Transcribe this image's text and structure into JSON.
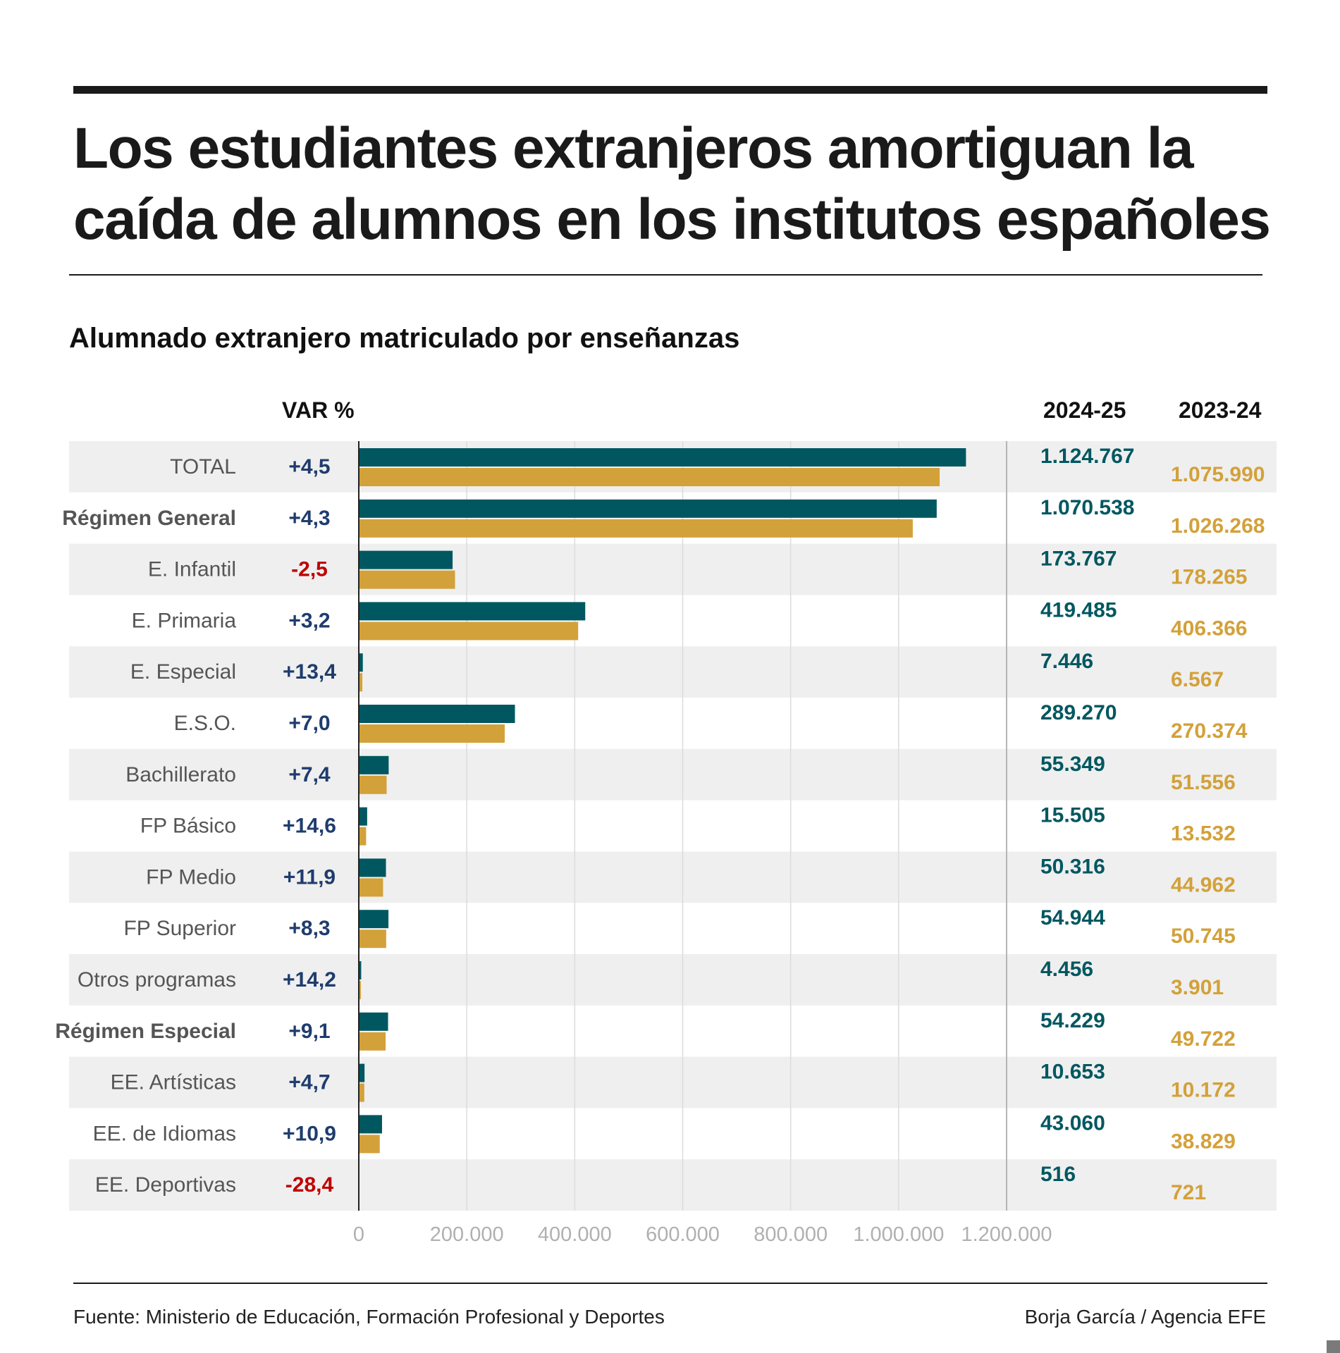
{
  "header": {
    "title_line1": "Los estudiantes extranjeros amortiguan la",
    "title_line2": "caída de alumnos en los institutos españoles",
    "subtitle": "Alumnado extranjero matriculado por enseñanzas"
  },
  "columns": {
    "var_label": "VAR %",
    "col_2024": "2024-25",
    "col_2023": "2023-24"
  },
  "footer": {
    "source": "Fuente: Ministerio de Educación, Formación Profesional y Deportes",
    "credit": "Borja García / Agencia EFE"
  },
  "colors": {
    "series_2024": "#005760",
    "series_2023": "#d3a13a",
    "positive_var": "#1f3c6e",
    "negative_var": "#c00000",
    "row_stripe": "#efefef",
    "label": "#555555"
  },
  "chart_data": {
    "type": "bar",
    "orientation": "horizontal",
    "grid": true,
    "xlim": [
      0,
      1200000
    ],
    "x_ticks": [
      "0",
      "200.000",
      "400.000",
      "600.000",
      "800.000",
      "1.000.000",
      "1.200.000"
    ],
    "categories": [
      "TOTAL",
      "Régimen General",
      "E. Infantil",
      "E. Primaria",
      "E. Especial",
      "E.S.O.",
      "Bachillerato",
      "FP Básico",
      "FP Medio",
      "FP Superior",
      "Otros programas",
      "Régimen Especial",
      "EE. Artísticas",
      "EE. de Idiomas",
      "EE. Deportivas"
    ],
    "bold_categories": [
      "Régimen General",
      "Régimen Especial"
    ],
    "variation": [
      "+4,5",
      "+4,3",
      "-2,5",
      "+3,2",
      "+13,4",
      "+7,0",
      "+7,4",
      "+14,6",
      "+11,9",
      "+8,3",
      "+14,2",
      "+9,1",
      "+4,7",
      "+10,9",
      "-28,4"
    ],
    "series": [
      {
        "name": "2024-25",
        "values": [
          1124767,
          1070538,
          173767,
          419485,
          7446,
          289270,
          55349,
          15505,
          50316,
          54944,
          4456,
          54229,
          10653,
          43060,
          516
        ],
        "labels": [
          "1.124.767",
          "1.070.538",
          "173.767",
          "419.485",
          "7.446",
          "289.270",
          "55.349",
          "15.505",
          "50.316",
          "54.944",
          "4.456",
          "54.229",
          "10.653",
          "43.060",
          "516"
        ]
      },
      {
        "name": "2023-24",
        "values": [
          1075990,
          1026268,
          178265,
          406366,
          6567,
          270374,
          51556,
          13532,
          44962,
          50745,
          3901,
          49722,
          10172,
          38829,
          721
        ],
        "labels": [
          "1.075.990",
          "1.026.268",
          "178.265",
          "406.366",
          "6.567",
          "270.374",
          "51.556",
          "13.532",
          "44.962",
          "50.745",
          "3.901",
          "49.722",
          "10.172",
          "38.829",
          "721"
        ]
      }
    ]
  }
}
